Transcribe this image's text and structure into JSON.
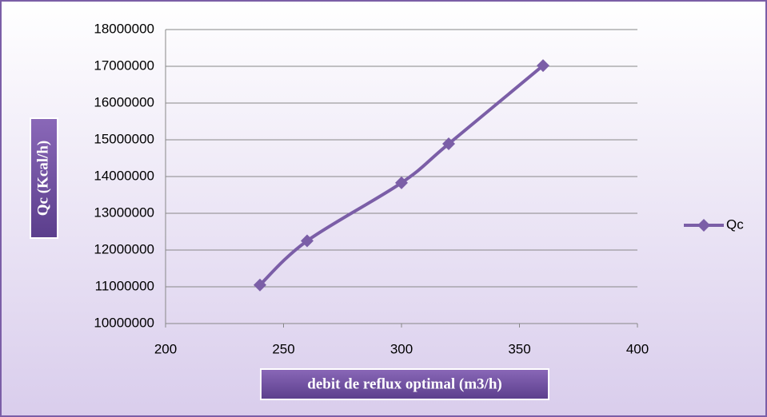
{
  "chart_data": {
    "type": "scatter",
    "x_label": "debit de reflux optimal (m3/h)",
    "y_label": "Qc (Kcal/h)",
    "series": [
      {
        "name": "Qc",
        "color": "#7b5ea7",
        "x": [
          240,
          260,
          300,
          320,
          360
        ],
        "values": [
          11050000,
          12250000,
          13830000,
          14890000,
          17020000
        ]
      }
    ],
    "xlim": [
      200,
      400
    ],
    "xticks": [
      200,
      250,
      300,
      350,
      400
    ],
    "ylim": [
      10000000,
      18000000
    ],
    "yticks": [
      10000000,
      11000000,
      12000000,
      13000000,
      14000000,
      15000000,
      16000000,
      17000000,
      18000000
    ],
    "grid": true,
    "legend": "right",
    "smooth": true
  }
}
